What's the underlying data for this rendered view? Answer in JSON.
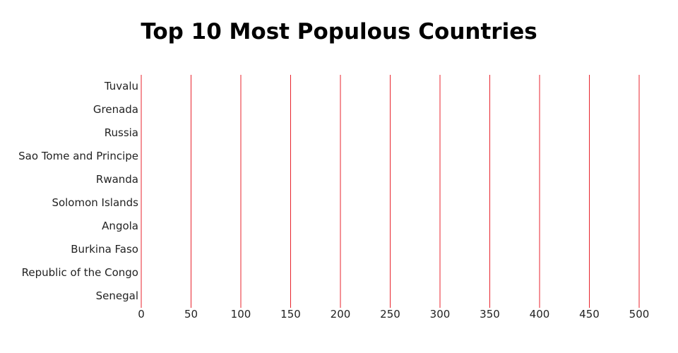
{
  "chart_data": {
    "type": "bar",
    "orientation": "horizontal",
    "title": "Top 10 Most Populous Countries",
    "xlabel": "",
    "ylabel": "",
    "categories": [
      "Tuvalu",
      "Grenada",
      "Russia",
      "Sao Tome and Principe",
      "Rwanda",
      "Solomon Islands",
      "Angola",
      "Burkina Faso",
      "Republic of the Congo",
      "Senegal"
    ],
    "values": [
      0,
      0,
      0,
      0,
      0,
      0,
      0,
      0,
      0,
      0
    ],
    "xlim": [
      0,
      500
    ],
    "xticks": [
      0,
      50,
      100,
      150,
      200,
      250,
      300,
      350,
      400,
      450,
      500
    ],
    "grid": "vertical",
    "colors": {
      "grid": "#e8232c",
      "bar": "#e8232c"
    }
  }
}
